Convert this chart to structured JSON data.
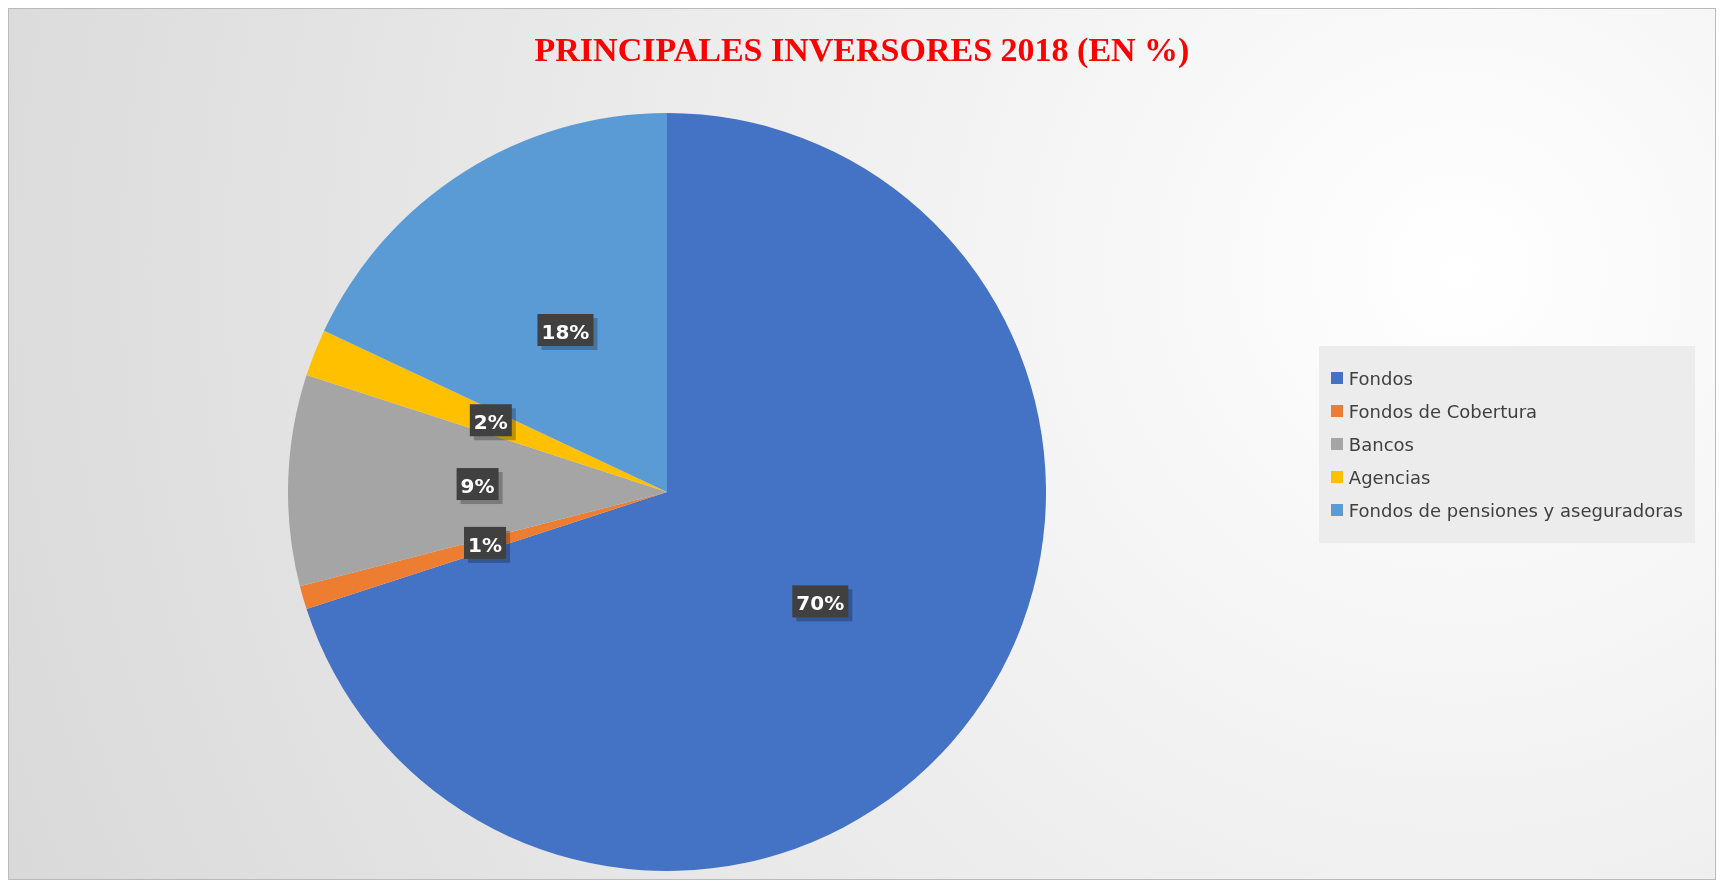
{
  "chart_data": {
    "type": "pie",
    "title": "PRINCIPALES INVERSORES 2018 (EN %)",
    "categories": [
      "Fondos",
      "Fondos de Cobertura",
      "Bancos",
      "Agencias",
      "Fondos de pensiones y aseguradoras"
    ],
    "values": [
      70,
      1,
      9,
      2,
      18
    ],
    "value_labels": [
      "70%",
      "1%",
      "9%",
      "2%",
      "18%"
    ],
    "colors": [
      "#4472c4",
      "#ed7d31",
      "#a5a5a5",
      "#ffc000",
      "#5b9bd5"
    ],
    "legend": "right"
  }
}
